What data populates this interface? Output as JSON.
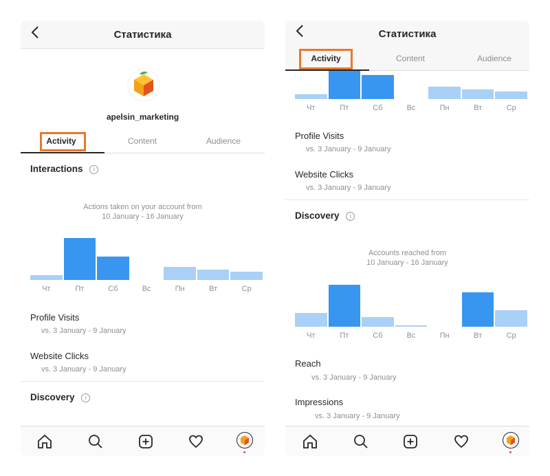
{
  "colors": {
    "bar_strong": "#3896f0",
    "bar_light": "#a9d0f6",
    "highlight": "#e8782a"
  },
  "left": {
    "header": {
      "back_icon": "chevron-left-icon",
      "title": "Статистика"
    },
    "profile": {
      "username": "apelsin_marketing",
      "avatar_icon": "orange-cube-logo"
    },
    "tabs": [
      {
        "label": "Activity"
      },
      {
        "label": "Content"
      },
      {
        "label": "Audience"
      }
    ],
    "interactions": {
      "title": "Interactions",
      "info_icon": "i",
      "caption_line1": "Actions taken on your account from",
      "caption_line2": "10 January - 16 January",
      "days": [
        "Чт",
        "Пт",
        "Сб",
        "Вс",
        "Пн",
        "Вт",
        "Ср"
      ],
      "values": [
        0.12,
        1.0,
        0.56,
        0.0,
        0.31,
        0.25,
        0.19
      ],
      "strong": [
        false,
        true,
        true,
        false,
        false,
        false,
        false
      ]
    },
    "metrics": [
      {
        "label": "Profile Visits",
        "sub": "vs. 3 January - 9 January"
      },
      {
        "label": "Website Clicks",
        "sub": "vs. 3 January - 9 January"
      }
    ],
    "discovery": {
      "title": "Discovery",
      "info_icon": "i"
    }
  },
  "right": {
    "header": {
      "back_icon": "chevron-left-icon",
      "title": "Статистика"
    },
    "tabs": [
      {
        "label": "Activity"
      },
      {
        "label": "Content"
      },
      {
        "label": "Audience"
      }
    ],
    "top_chart": {
      "days": [
        "Чт",
        "Пт",
        "Сб",
        "Вс",
        "Пн",
        "Вт",
        "Ср"
      ],
      "values": [
        0.18,
        1.0,
        0.85,
        0.0,
        0.45,
        0.35,
        0.28
      ],
      "strong": [
        false,
        true,
        true,
        false,
        false,
        false,
        false
      ]
    },
    "metrics_top": [
      {
        "label": "Profile Visits",
        "sub": "vs. 3 January - 9 January"
      },
      {
        "label": "Website Clicks",
        "sub": "vs. 3 January - 9 January"
      }
    ],
    "discovery": {
      "title": "Discovery",
      "info_icon": "i",
      "caption_line1": "Accounts reached from",
      "caption_line2": "10 January - 16 January",
      "days": [
        "Чт",
        "Пт",
        "Сб",
        "Вс",
        "Пн",
        "Вт",
        "Ср"
      ],
      "values": [
        0.33,
        1.0,
        0.23,
        0.02,
        0.0,
        0.82,
        0.39
      ],
      "strong": [
        false,
        true,
        false,
        false,
        false,
        true,
        false
      ]
    },
    "metrics_bottom": [
      {
        "label": "Reach",
        "sub": "vs. 3 January - 9 January"
      },
      {
        "label": "Impressions",
        "sub": "vs. 3 January - 9 January"
      }
    ]
  },
  "nav": {
    "items": [
      {
        "icon": "home-icon"
      },
      {
        "icon": "search-icon"
      },
      {
        "icon": "add-post-icon"
      },
      {
        "icon": "heart-icon"
      },
      {
        "icon": "profile-avatar-icon"
      }
    ]
  }
}
